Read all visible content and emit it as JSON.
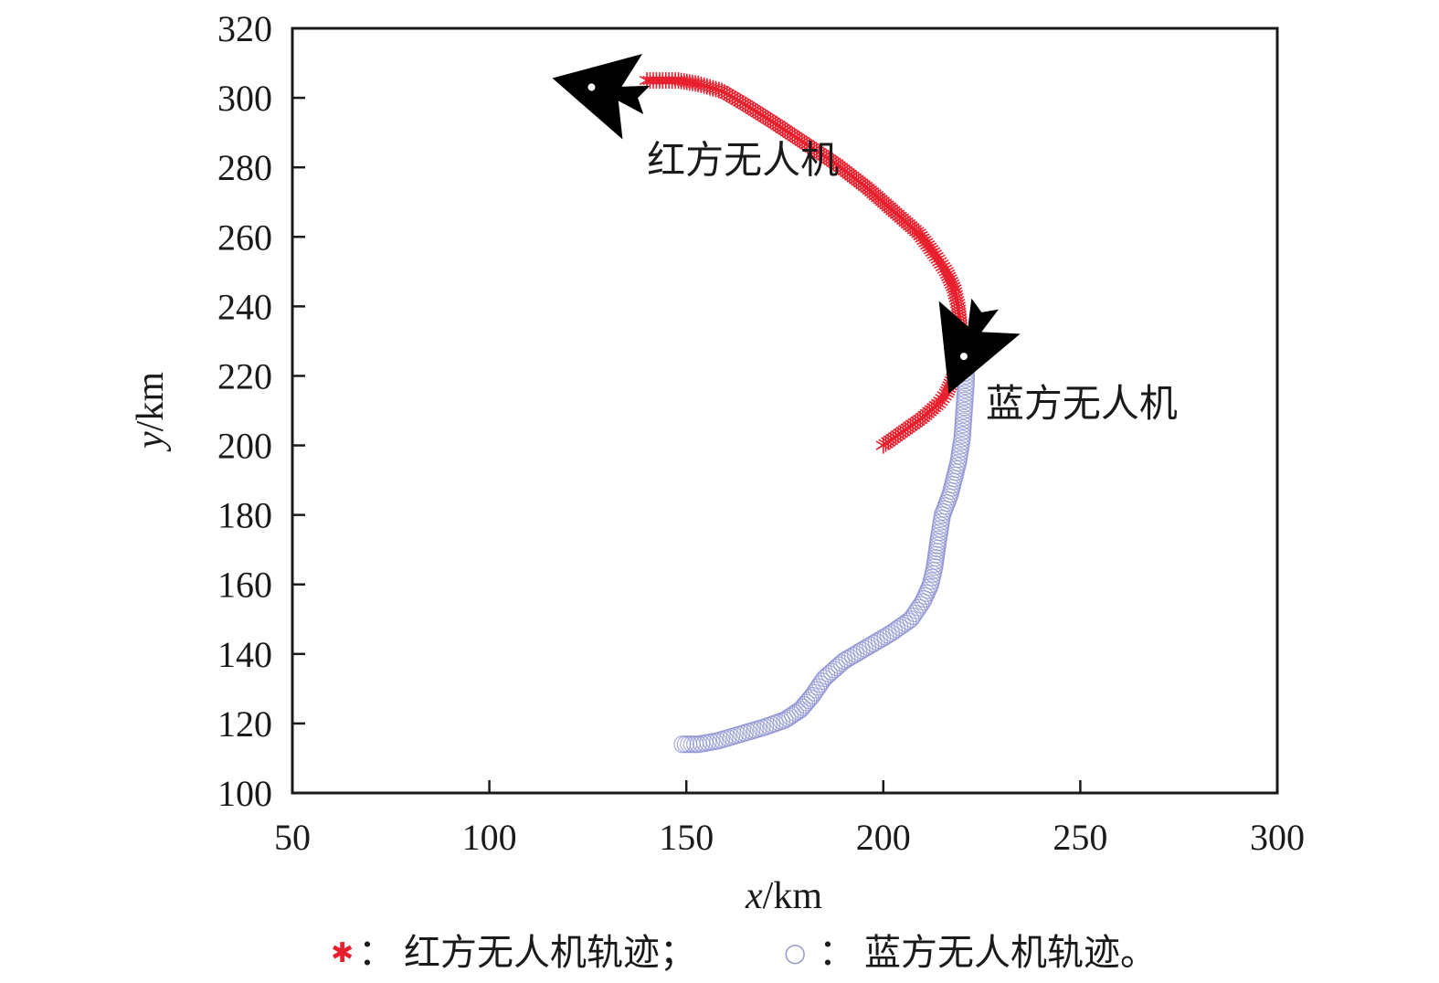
{
  "chart_data": {
    "type": "line",
    "xlabel_var": "x",
    "xlabel_unit": "/km",
    "ylabel_var": "y",
    "ylabel_unit": "/km",
    "xlim": [
      50,
      300
    ],
    "ylim": [
      100,
      320
    ],
    "xticks": [
      "50",
      "100",
      "150",
      "200",
      "250",
      "300"
    ],
    "yticks": [
      "100",
      "120",
      "140",
      "160",
      "180",
      "200",
      "220",
      "240",
      "260",
      "280",
      "300",
      "320"
    ],
    "grid": false,
    "series": [
      {
        "name": "红方无人机轨迹",
        "color": "#e8202e",
        "marker": "asterisk",
        "x": [
          200,
          205,
          210,
          214,
          216,
          218,
          219,
          219.5,
          219.5,
          219,
          218,
          216,
          213,
          209,
          203,
          196,
          188,
          180,
          172,
          165,
          159,
          153,
          148,
          144,
          140
        ],
        "y": [
          200,
          204,
          208,
          212,
          215,
          220,
          225,
          230,
          235,
          240,
          245,
          250,
          255,
          261,
          267,
          274,
          281,
          287,
          293,
          298,
          302,
          304,
          305,
          305,
          305
        ]
      },
      {
        "name": "蓝方无人机轨迹",
        "color": "#8b90d0",
        "marker": "circle",
        "x": [
          149,
          153,
          158,
          164,
          170,
          175,
          179,
          182,
          185,
          190,
          196,
          202,
          207,
          210,
          212,
          213,
          214,
          215,
          217,
          219,
          220,
          220.5,
          221,
          221
        ],
        "y": [
          114,
          114,
          115,
          117,
          119,
          121,
          124,
          128,
          133,
          138,
          142,
          146,
          150,
          155,
          160,
          165,
          173,
          180,
          186,
          195,
          202,
          210,
          218,
          225
        ]
      }
    ],
    "annotations": [
      {
        "text": "红方无人机",
        "x": 140,
        "y": 282
      },
      {
        "text": "蓝方无人机",
        "x": 226,
        "y": 212
      }
    ],
    "aircraft": [
      {
        "series": "红方无人机轨迹",
        "x": 130,
        "y": 302,
        "heading_deg": 193,
        "color": "#000000"
      },
      {
        "series": "蓝方无人机轨迹",
        "x": 222,
        "y": 230,
        "heading_deg": 112,
        "color": "#000000"
      }
    ],
    "legend": {
      "placement": "bottom",
      "separator": "：",
      "items": [
        {
          "symbol": "✱",
          "label": "红方无人机轨迹；"
        },
        {
          "symbol": "○",
          "label": "蓝方无人机轨迹。"
        }
      ]
    }
  }
}
